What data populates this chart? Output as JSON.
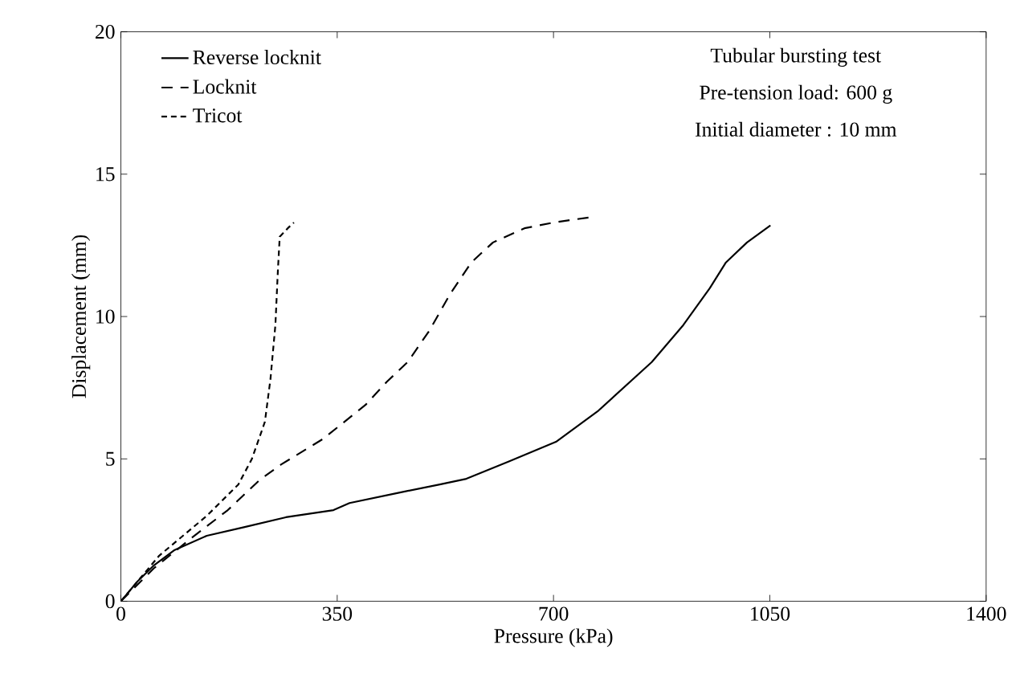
{
  "chart_data": {
    "type": "line",
    "xlabel": "Pressure (kPa)",
    "ylabel": "Displacement (mm)",
    "xlim": [
      0,
      1400
    ],
    "ylim": [
      0,
      20
    ],
    "xticks": [
      0,
      350,
      700,
      1050,
      1400
    ],
    "yticks": [
      0,
      5,
      10,
      15,
      20
    ],
    "grid": false,
    "legend": "top left",
    "marker": "none",
    "series": [
      {
        "name": "Reverse  locknit",
        "color": "#000000",
        "line_style": "solid",
        "x": [
          0,
          27,
          53,
          87,
          139,
          199,
          267,
          344,
          370,
          447,
          516,
          559,
          627,
          704,
          773,
          859,
          910,
          953,
          979,
          1013,
          1051
        ],
        "values": [
          0,
          0.7,
          1.25,
          1.8,
          2.3,
          2.6,
          2.95,
          3.2,
          3.45,
          3.8,
          4.1,
          4.3,
          4.9,
          5.6,
          6.7,
          8.4,
          9.7,
          11.0,
          11.9,
          12.6,
          13.2
        ]
      },
      {
        "name": "Locknit",
        "color": "#000000",
        "line_style": "dashed",
        "x": [
          0,
          53,
          113,
          173,
          224,
          259,
          327,
          396,
          430,
          464,
          499,
          533,
          567,
          602,
          653,
          700,
          764
        ],
        "values": [
          0,
          1.15,
          2.2,
          3.2,
          4.25,
          4.8,
          5.7,
          6.9,
          7.7,
          8.4,
          9.5,
          10.8,
          11.9,
          12.6,
          13.1,
          13.3,
          13.5
        ]
      },
      {
        "name": "Tricot",
        "color": "#000000",
        "line_style": "dotted",
        "x": [
          0,
          62,
          139,
          190,
          212,
          233,
          242,
          250,
          254,
          257,
          270,
          280
        ],
        "values": [
          0,
          1.6,
          3.0,
          4.1,
          5.0,
          6.3,
          7.8,
          9.7,
          11.6,
          12.8,
          13.1,
          13.3
        ]
      }
    ],
    "annotations": [
      "Tubular bursting  test",
      "Pre-tension load: 600 g",
      "Initial diameter : 10 mm"
    ]
  }
}
